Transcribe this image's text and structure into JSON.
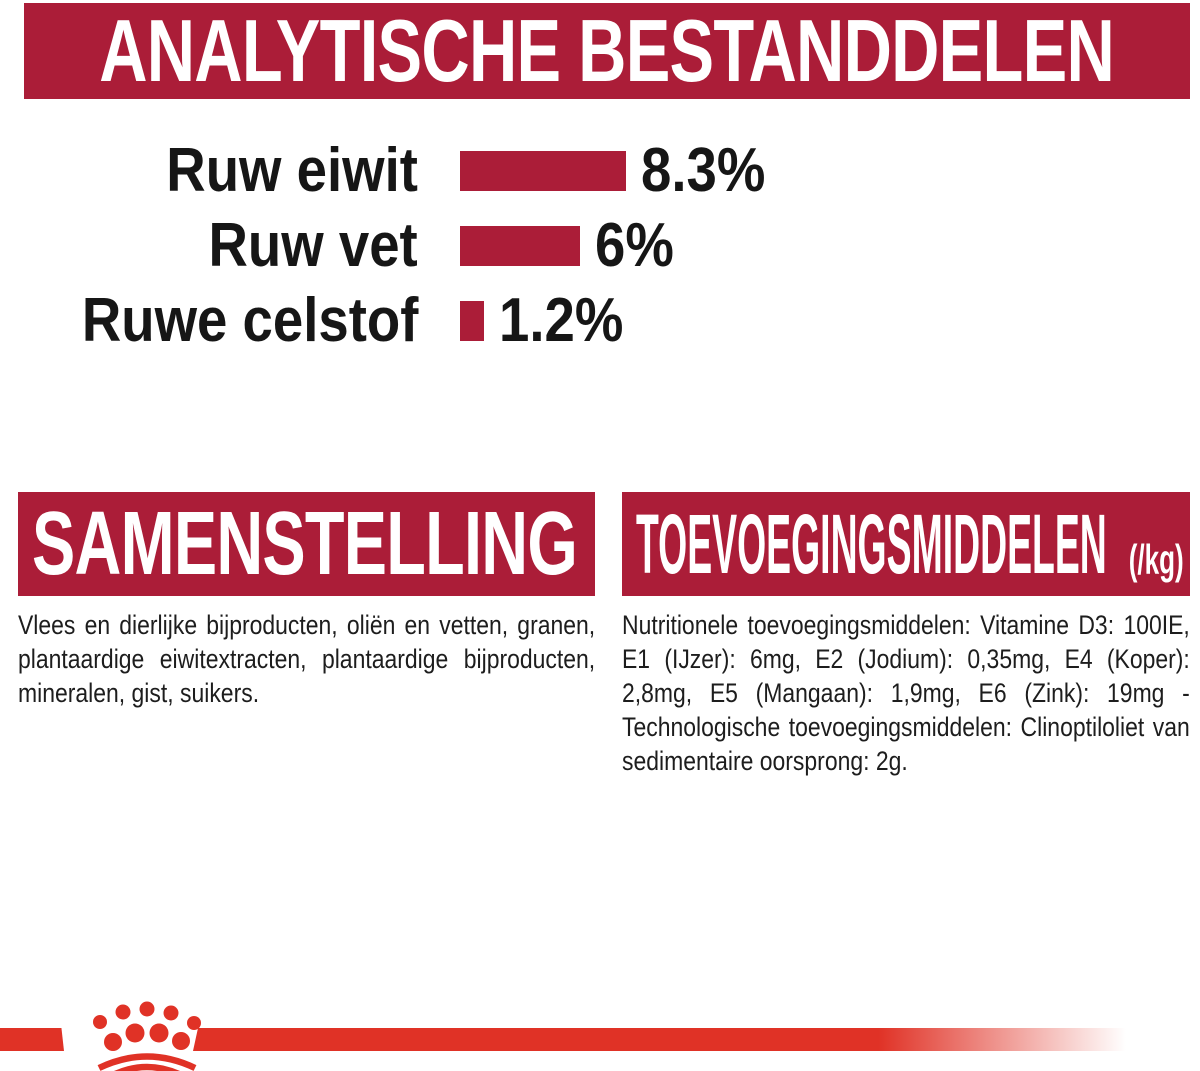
{
  "header": {
    "title": "ANALYTISCHE BESTANDDELEN"
  },
  "chart_data": {
    "type": "bar",
    "orientation": "horizontal",
    "categories": [
      "Ruw eiwit",
      "Ruw vet",
      "Ruwe celstof"
    ],
    "values": [
      8.3,
      6,
      1.2
    ],
    "value_labels": [
      "8.3%",
      "6%",
      "1.2%"
    ],
    "unit": "%",
    "xlim": [
      0,
      10
    ],
    "bar_color": "#ab1d38",
    "grid": false,
    "legend": false
  },
  "sections": {
    "composition": {
      "title": "SAMENSTELLING",
      "body": "Vlees en dierlijke bijproducten, oliën en vetten, granen, plantaardige eiwitextracten, plantaardige bijproducten, mineralen, gist, suikers."
    },
    "additives": {
      "title": "TOEVOEGINGSMIDDELEN",
      "title_suffix": "(/kg)",
      "body": "Nutritionele toevoegingsmiddelen: Vitamine D3: 100IE, E1 (IJzer): 6mg, E2 (Jodium): 0,35mg, E4 (Koper): 2,8mg, E5 (Mangaan): 1,9mg, E6 (Zink): 19mg - Technologische toevoegingsmiddelen: Clinoptiloliet van sedimentaire oorsprong: 2g."
    }
  },
  "footer": {
    "brand_logo_icon": "royal-canin-crown-icon"
  },
  "colors": {
    "banner_crimson": "#ab1d38",
    "brand_red": "#e03226",
    "text_dark": "#1a1a1a",
    "background": "#ffffff"
  }
}
